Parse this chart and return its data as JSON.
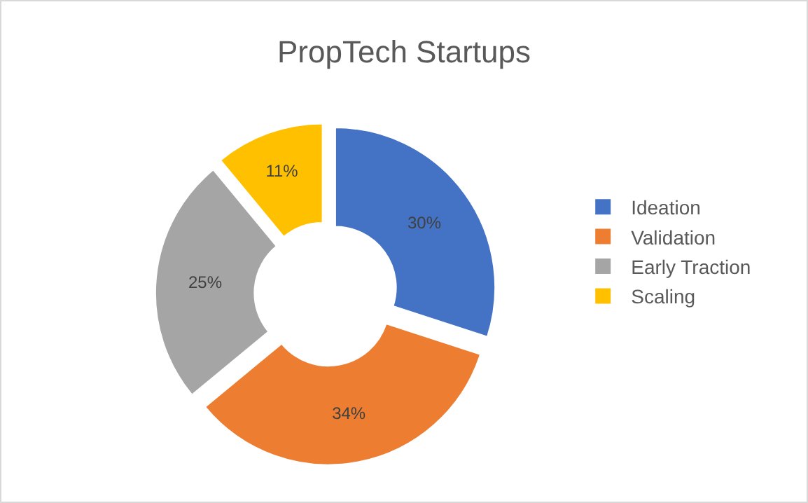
{
  "chart_data": {
    "type": "donut",
    "title": "PropTech Startups",
    "categories": [
      "Ideation",
      "Validation",
      "Early Traction",
      "Scaling"
    ],
    "values": [
      30,
      34,
      25,
      11
    ],
    "colors": [
      "#4472c4",
      "#ed7d31",
      "#a5a5a5",
      "#ffc000"
    ],
    "value_labels": [
      "30%",
      "34%",
      "25%",
      "11%"
    ],
    "legend": "right"
  }
}
